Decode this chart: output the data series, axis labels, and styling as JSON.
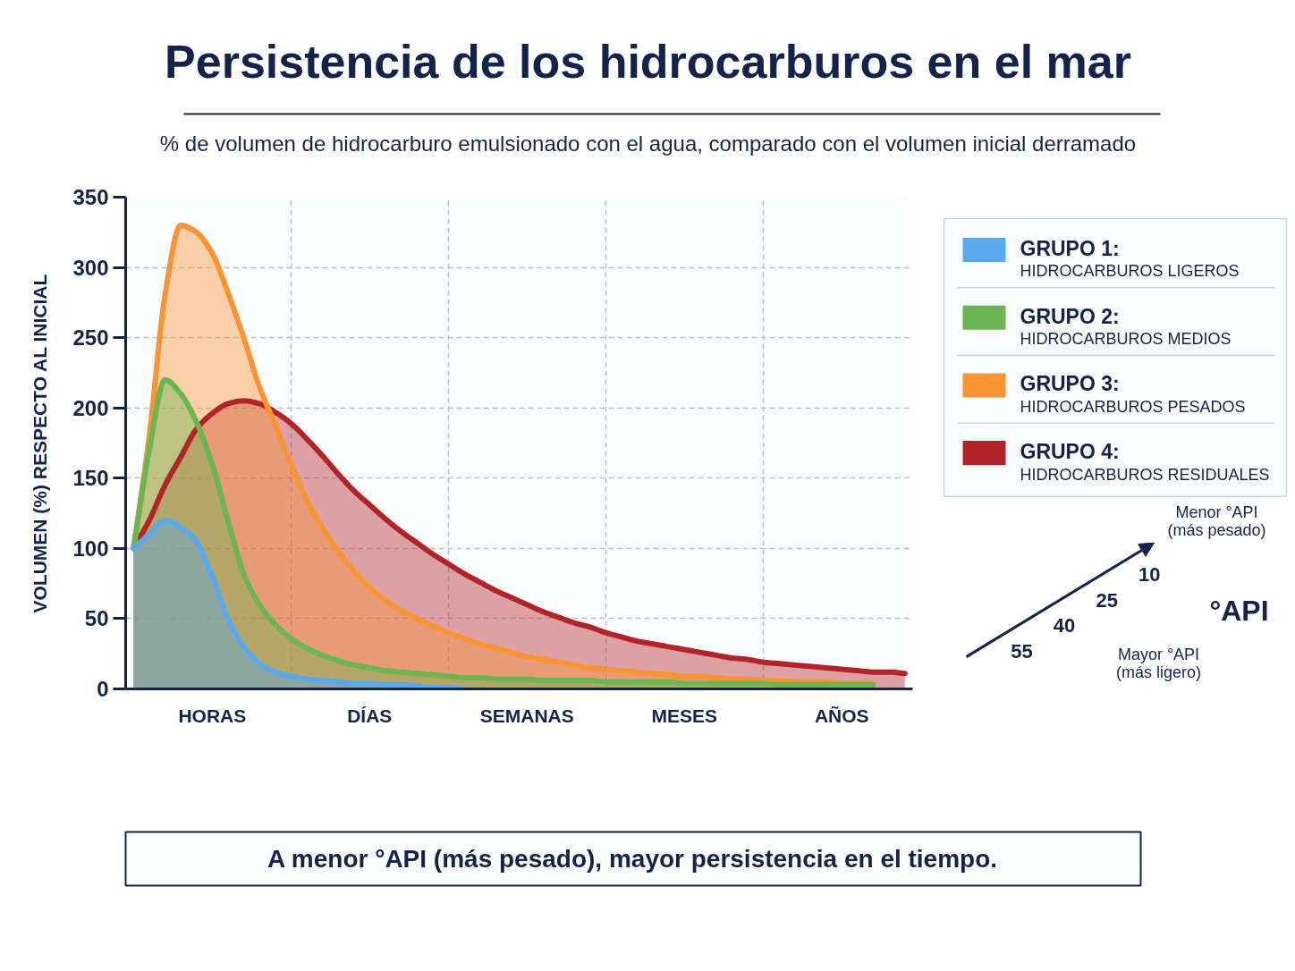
{
  "chart_data": {
    "type": "area",
    "title": "Persistencia de los hidrocarburos en el mar",
    "subtitle": "% de volumen de hidrocarburo emulsionado con el agua, comparado con el volumen inicial derramado",
    "ylabel": "VOLUMEN (%) RESPECTO AL INICIAL",
    "categories": [
      null,
      null,
      null,
      null,
      null,
      "HORAS",
      null,
      null,
      null,
      null,
      null,
      null,
      null,
      null,
      null,
      "DÍAS",
      null,
      null,
      null,
      null,
      null,
      null,
      null,
      null,
      null,
      "SEMANAS",
      null,
      null,
      null,
      null,
      null,
      null,
      null,
      null,
      null,
      "MESES",
      null,
      null,
      null,
      null,
      null,
      null,
      null,
      null,
      null,
      "AÑOS",
      null,
      null,
      null,
      null
    ],
    "ylim": [
      0,
      350
    ],
    "yticks": [
      0,
      50,
      100,
      150,
      200,
      250,
      300,
      350
    ],
    "grid": true,
    "legend": "top right",
    "series": [
      {
        "name": "GRUPO 1:\nHIDROCARBUROS LIGEROS",
        "color": "#5aa9ec",
        "values": [
          100,
          110,
          120,
          115,
          105,
          80,
          50,
          30,
          18,
          12,
          9,
          7,
          6,
          5,
          4,
          4,
          3,
          3,
          2,
          1,
          1,
          0,
          null,
          null,
          null,
          null,
          null,
          null,
          null,
          null,
          null,
          null,
          null,
          null,
          null,
          null,
          null,
          null,
          null,
          null,
          null,
          null,
          null,
          null,
          null,
          null,
          null,
          null,
          null,
          null
        ]
      },
      {
        "name": "GRUPO 2:\nHIDROCARBUROS MEDIOS",
        "color": "#6cb552",
        "values": [
          100,
          170,
          220,
          210,
          190,
          160,
          120,
          82,
          60,
          46,
          36,
          29,
          24,
          20,
          17,
          15,
          13,
          12,
          11,
          10,
          9,
          8,
          8,
          7,
          7,
          7,
          6,
          6,
          6,
          6,
          5,
          5,
          5,
          5,
          5,
          4,
          4,
          4,
          4,
          4,
          4,
          3,
          3,
          3,
          3,
          3,
          3,
          3,
          null,
          null
        ]
      },
      {
        "name": "GRUPO 3:\nHIDROCARBUROS PESADOS",
        "color": "#f99434",
        "values": [
          100,
          180,
          280,
          330,
          325,
          310,
          282,
          250,
          215,
          188,
          160,
          135,
          115,
          98,
          84,
          72,
          63,
          56,
          50,
          45,
          40,
          36,
          32,
          29,
          26,
          23,
          21,
          19,
          17,
          15,
          14,
          13,
          12,
          11,
          10,
          9,
          9,
          8,
          7,
          7,
          6,
          6,
          5,
          5,
          5,
          4,
          4,
          4,
          null,
          null
        ]
      },
      {
        "name": "GRUPO 4:\nHIDROCARBUROS RESIDUALES",
        "color": "#b3242a",
        "values": [
          100,
          120,
          145,
          165,
          185,
          196,
          203,
          205,
          203,
          197,
          189,
          178,
          166,
          153,
          141,
          131,
          121,
          112,
          104,
          96,
          89,
          82,
          76,
          70,
          65,
          60,
          55,
          51,
          47,
          44,
          40,
          37,
          34,
          32,
          30,
          28,
          26,
          24,
          22,
          21,
          19,
          18,
          17,
          16,
          15,
          14,
          13,
          12,
          12,
          11
        ]
      }
    ],
    "annotations": [
      "°API",
      "10",
      "25",
      "40",
      "55",
      "Menor °API\n(más pesado)",
      "Mayor °API\n(más ligero)",
      "A menor °API (más pesado), mayor persistencia en el tiempo."
    ]
  }
}
